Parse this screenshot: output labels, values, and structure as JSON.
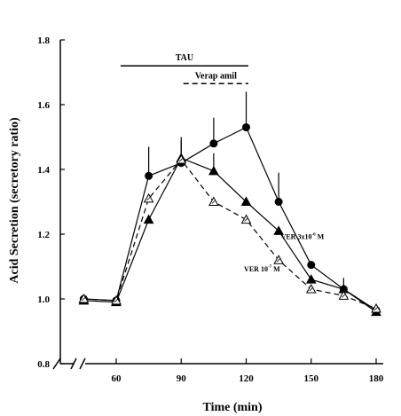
{
  "chart_data": {
    "type": "line",
    "xlabel": "Time (min)",
    "ylabel": "Acid Secretion (secretory ratio)",
    "xlim": [
      38,
      183
    ],
    "ylim": [
      0.8,
      1.8
    ],
    "x_ticks": [
      "60",
      "90",
      "120",
      "150",
      "180"
    ],
    "y_ticks": [
      "0.8",
      "1.0",
      "1.2",
      "1.4",
      "1.6",
      "1.8"
    ],
    "x_axis_break": true,
    "series": [
      {
        "marker": "filled-circle",
        "line": "solid",
        "x": [
          45,
          60,
          75,
          90,
          105,
          120,
          135,
          150,
          165,
          180
        ],
        "y": [
          1.0,
          0.995,
          1.38,
          1.42,
          1.48,
          1.53,
          1.3,
          1.105,
          1.03,
          0.965
        ],
        "error_upper": [
          null,
          null,
          1.47,
          1.49,
          1.56,
          1.64,
          1.39,
          null,
          1.065,
          null
        ]
      },
      {
        "marker": "filled-triangle",
        "line": "solid",
        "x": [
          45,
          60,
          75,
          90,
          105,
          120,
          135,
          150,
          165,
          180
        ],
        "y": [
          0.995,
          0.99,
          1.245,
          1.435,
          1.395,
          1.3,
          1.21,
          1.06,
          1.03,
          0.96
        ],
        "error_upper": [
          null,
          null,
          null,
          1.5,
          1.45,
          null,
          null,
          null,
          null,
          null
        ]
      },
      {
        "marker": "open-triangle",
        "line": "dashed",
        "x": [
          45,
          60,
          75,
          90,
          105,
          120,
          135,
          150,
          165,
          180
        ],
        "y": [
          1.0,
          0.995,
          1.31,
          1.43,
          1.3,
          1.245,
          1.12,
          1.03,
          1.01,
          0.97
        ],
        "error_upper": [
          null,
          null,
          null,
          null,
          null,
          null,
          null,
          null,
          null,
          null
        ]
      }
    ],
    "annotations": {
      "tau": {
        "label": "TAU",
        "x_start": 62,
        "x_end": 121,
        "y": 1.72,
        "line": "solid"
      },
      "verapamil": {
        "label": "Verap amil",
        "x_start": 91,
        "x_end": 121,
        "y": 1.665,
        "line": "dashed"
      },
      "ver_high": {
        "label_main": "VER 3x10",
        "label_sup": "-6",
        "label_unit": "M",
        "x": 136,
        "y": 1.185
      },
      "ver_low": {
        "label_main": "VER 10",
        "label_sup": "-7",
        "label_unit": "M",
        "x": 119,
        "y": 1.085
      }
    }
  }
}
